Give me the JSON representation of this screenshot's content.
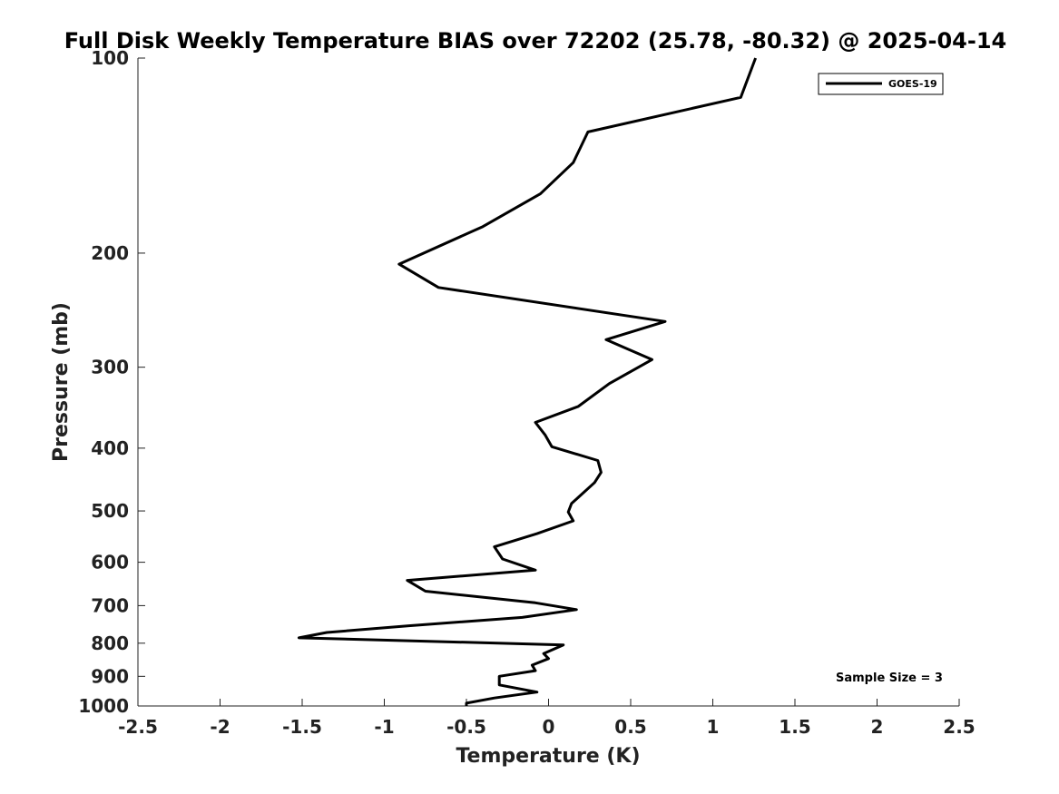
{
  "chart_data": {
    "type": "line",
    "title": "Full Disk Weekly Temperature BIAS over 72202 (25.78, -80.32) @ 2025-04-14",
    "xlabel": "Temperature (K)",
    "ylabel": "Pressure (mb)",
    "xlim": [
      -2.5,
      2.5
    ],
    "ylim": [
      1000,
      100
    ],
    "y_scale": "log",
    "x_ticks": [
      -2.5,
      -2,
      -1.5,
      -1,
      -0.5,
      0,
      0.5,
      1,
      1.5,
      2,
      2.5
    ],
    "x_tick_labels": [
      "-2.5",
      "-2",
      "-1.5",
      "-1",
      "-0.5",
      "0",
      "0.5",
      "1",
      "1.5",
      "2",
      "2.5"
    ],
    "y_ticks": [
      100,
      200,
      300,
      400,
      500,
      600,
      700,
      800,
      900,
      1000
    ],
    "y_tick_labels": [
      "100",
      "200",
      "300",
      "400",
      "500",
      "600",
      "700",
      "800",
      "900",
      "1000"
    ],
    "grid": false,
    "legend": {
      "position": "top-right",
      "entries": [
        "GOES-19"
      ]
    },
    "annotation": "Sample Size = 3",
    "series": [
      {
        "name": "GOES-19",
        "color": "#000000",
        "x": [
          1.26,
          1.17,
          0.24,
          0.15,
          -0.05,
          -0.4,
          -0.91,
          -0.67,
          0.71,
          0.35,
          0.63,
          0.37,
          0.18,
          -0.08,
          -0.02,
          0.02,
          0.3,
          0.32,
          0.28,
          0.14,
          0.12,
          0.15,
          -0.07,
          -0.33,
          -0.28,
          -0.08,
          -0.86,
          -0.75,
          -0.08,
          0.17,
          -0.16,
          -0.85,
          -1.35,
          -1.52,
          0.09,
          -0.03,
          0.0,
          -0.1,
          -0.08,
          -0.3,
          -0.3,
          -0.07,
          -0.33,
          -0.5,
          -0.5
        ],
        "y": [
          100,
          115,
          130,
          145,
          162,
          182,
          208,
          226,
          255,
          272,
          292,
          318,
          345,
          365,
          382,
          398,
          418,
          436,
          452,
          487,
          502,
          518,
          542,
          568,
          593,
          617,
          640,
          665,
          693,
          710,
          730,
          752,
          770,
          785,
          805,
          830,
          845,
          865,
          882,
          900,
          928,
          952,
          972,
          990,
          1000
        ]
      }
    ]
  }
}
